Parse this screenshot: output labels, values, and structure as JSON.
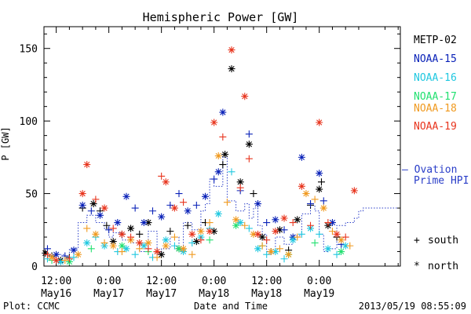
{
  "chart_data": {
    "type": "scatter",
    "title": "Hemispheric Power [GW]",
    "ylabel": "P [GW]",
    "xlabel": "Date and Time",
    "ylim": [
      0,
      165
    ],
    "xlim": [
      -2.8,
      78.5
    ],
    "grid": false,
    "y_ticks": [
      0,
      50,
      100,
      150
    ],
    "x_ticks": [
      {
        "x": 0,
        "time": "12:00",
        "date": "May16"
      },
      {
        "x": 12,
        "time": "0:00",
        "date": "May17"
      },
      {
        "x": 24,
        "time": "12:00",
        "date": "May17"
      },
      {
        "x": 36,
        "time": "0:00",
        "date": "May18"
      },
      {
        "x": 48,
        "time": "12:00",
        "date": "May18"
      },
      {
        "x": 60,
        "time": "0:00",
        "date": "May19"
      }
    ],
    "x_units": "hours after 2013-05-16 12:00 UT",
    "legend_position": "right",
    "series": [
      {
        "name": "METP-02",
        "color": "#000000",
        "values": [
          [
            -2.5,
            9,
            "n"
          ],
          [
            -1,
            7,
            "s"
          ],
          [
            1,
            4,
            "n"
          ],
          [
            3,
            6,
            "s"
          ],
          [
            6,
            40,
            "s"
          ],
          [
            8.5,
            43,
            "n"
          ],
          [
            10,
            38,
            "s"
          ],
          [
            11.5,
            28,
            "s"
          ],
          [
            13,
            17,
            "n"
          ],
          [
            15,
            22,
            "s"
          ],
          [
            17,
            26,
            "n"
          ],
          [
            19,
            22,
            "s"
          ],
          [
            21,
            30,
            "n"
          ],
          [
            23,
            10,
            "s"
          ],
          [
            24,
            8,
            "n"
          ],
          [
            26,
            24,
            "s"
          ],
          [
            28,
            12,
            "n"
          ],
          [
            30,
            28,
            "s"
          ],
          [
            32,
            17,
            "n"
          ],
          [
            34,
            30,
            "s"
          ],
          [
            36,
            24,
            "n"
          ],
          [
            38,
            70,
            "s"
          ],
          [
            38.5,
            77,
            "n"
          ],
          [
            40,
            136,
            "n"
          ],
          [
            42,
            58,
            "n"
          ],
          [
            44,
            84,
            "n"
          ],
          [
            45,
            50,
            "s"
          ],
          [
            47,
            20,
            "n"
          ],
          [
            49,
            10,
            "s"
          ],
          [
            51,
            25,
            "n"
          ],
          [
            53,
            11,
            "s"
          ],
          [
            55,
            32,
            "n"
          ],
          [
            58,
            42,
            "s"
          ],
          [
            60,
            53,
            "n"
          ],
          [
            60.5,
            58,
            "s"
          ],
          [
            62,
            28,
            "n"
          ],
          [
            64,
            20,
            "s"
          ]
        ]
      },
      {
        "name": "NOAA-15",
        "color": "#0a22b8",
        "values": [
          [
            -2,
            12,
            "s"
          ],
          [
            0,
            8,
            "n"
          ],
          [
            2,
            7,
            "s"
          ],
          [
            4,
            11,
            "n"
          ],
          [
            6,
            42,
            "n"
          ],
          [
            8,
            38,
            "s"
          ],
          [
            10,
            35,
            "n"
          ],
          [
            12,
            25,
            "s"
          ],
          [
            14,
            30,
            "n"
          ],
          [
            16,
            48,
            "n"
          ],
          [
            18,
            40,
            "s"
          ],
          [
            20,
            30,
            "n"
          ],
          [
            22,
            38,
            "s"
          ],
          [
            24,
            34,
            "n"
          ],
          [
            26,
            42,
            "s"
          ],
          [
            28,
            50,
            "s"
          ],
          [
            30,
            38,
            "n"
          ],
          [
            32,
            42,
            "s"
          ],
          [
            34,
            48,
            "n"
          ],
          [
            36,
            60,
            "s"
          ],
          [
            37,
            65,
            "n"
          ],
          [
            38,
            106,
            "n"
          ],
          [
            42,
            52,
            "s"
          ],
          [
            44,
            91,
            "s"
          ],
          [
            46,
            43,
            "n"
          ],
          [
            48,
            30,
            "s"
          ],
          [
            50,
            32,
            "n"
          ],
          [
            52,
            25,
            "s"
          ],
          [
            54,
            20,
            "n"
          ],
          [
            56,
            75,
            "n"
          ],
          [
            58,
            43,
            "s"
          ],
          [
            60,
            64,
            "n"
          ],
          [
            61,
            45,
            "s"
          ],
          [
            63,
            30,
            "n"
          ],
          [
            65,
            15,
            "s"
          ]
        ]
      },
      {
        "name": "NOAA-16",
        "color": "#20c8e0",
        "values": [
          [
            -2,
            5,
            "s"
          ],
          [
            1,
            3,
            "n"
          ],
          [
            4,
            6,
            "s"
          ],
          [
            7,
            16,
            "n"
          ],
          [
            9,
            20,
            "s"
          ],
          [
            11,
            14,
            "n"
          ],
          [
            14,
            10,
            "s"
          ],
          [
            16,
            12,
            "n"
          ],
          [
            18,
            8,
            "s"
          ],
          [
            20,
            14,
            "n"
          ],
          [
            22,
            6,
            "s"
          ],
          [
            25,
            18,
            "n"
          ],
          [
            27,
            14,
            "s"
          ],
          [
            29,
            10,
            "n"
          ],
          [
            31,
            16,
            "s"
          ],
          [
            33,
            20,
            "n"
          ],
          [
            35,
            26,
            "s"
          ],
          [
            37,
            36,
            "n"
          ],
          [
            40,
            65,
            "s"
          ],
          [
            42,
            30,
            "n"
          ],
          [
            44,
            26,
            "s"
          ],
          [
            46,
            12,
            "n"
          ],
          [
            48,
            8,
            "s"
          ],
          [
            50,
            10,
            "n"
          ],
          [
            52,
            5,
            "s"
          ],
          [
            54,
            18,
            "n"
          ],
          [
            56,
            22,
            "s"
          ],
          [
            58,
            26,
            "n"
          ],
          [
            60,
            22,
            "s"
          ],
          [
            62,
            12,
            "n"
          ],
          [
            64,
            8,
            "s"
          ],
          [
            66,
            14,
            "n"
          ]
        ]
      },
      {
        "name": "NOAA-17",
        "color": "#22e070",
        "values": [
          [
            -1,
            4,
            "s"
          ],
          [
            3,
            3,
            "n"
          ],
          [
            8,
            12,
            "s"
          ],
          [
            15,
            14,
            "n"
          ],
          [
            21,
            10,
            "s"
          ],
          [
            28,
            12,
            "n"
          ],
          [
            35,
            18,
            "s"
          ],
          [
            41,
            28,
            "n"
          ],
          [
            47,
            14,
            "s"
          ],
          [
            53,
            8,
            "n"
          ],
          [
            59,
            16,
            "s"
          ],
          [
            65,
            10,
            "n"
          ]
        ]
      },
      {
        "name": "NOAA-18",
        "color": "#f09a20",
        "values": [
          [
            -1,
            6,
            "n"
          ],
          [
            2,
            4,
            "s"
          ],
          [
            5,
            8,
            "n"
          ],
          [
            7,
            26,
            "s"
          ],
          [
            9,
            22,
            "n"
          ],
          [
            11,
            16,
            "s"
          ],
          [
            13,
            14,
            "n"
          ],
          [
            15,
            10,
            "s"
          ],
          [
            17,
            18,
            "n"
          ],
          [
            19,
            12,
            "s"
          ],
          [
            21,
            16,
            "n"
          ],
          [
            23,
            6,
            "s"
          ],
          [
            25,
            14,
            "n"
          ],
          [
            27,
            20,
            "s"
          ],
          [
            29,
            12,
            "n"
          ],
          [
            31,
            8,
            "s"
          ],
          [
            33,
            24,
            "n"
          ],
          [
            35,
            30,
            "s"
          ],
          [
            37,
            76,
            "n"
          ],
          [
            39,
            44,
            "s"
          ],
          [
            41,
            32,
            "n"
          ],
          [
            43,
            28,
            "s"
          ],
          [
            45,
            22,
            "n"
          ],
          [
            47,
            14,
            "s"
          ],
          [
            49,
            10,
            "n"
          ],
          [
            51,
            12,
            "s"
          ],
          [
            53,
            8,
            "n"
          ],
          [
            55,
            20,
            "s"
          ],
          [
            57,
            50,
            "n"
          ],
          [
            59,
            46,
            "s"
          ],
          [
            61,
            40,
            "n"
          ],
          [
            63,
            24,
            "s"
          ],
          [
            65,
            18,
            "n"
          ],
          [
            67,
            14,
            "s"
          ]
        ]
      },
      {
        "name": "NOAA-19",
        "color": "#e8351e",
        "values": [
          [
            -2,
            8,
            "s"
          ],
          [
            0,
            4,
            "n"
          ],
          [
            3,
            5,
            "s"
          ],
          [
            6,
            50,
            "n"
          ],
          [
            7,
            70,
            "n"
          ],
          [
            9,
            46,
            "s"
          ],
          [
            11,
            40,
            "n"
          ],
          [
            13,
            26,
            "s"
          ],
          [
            15,
            22,
            "n"
          ],
          [
            17,
            20,
            "s"
          ],
          [
            19,
            16,
            "n"
          ],
          [
            21,
            12,
            "s"
          ],
          [
            23,
            10,
            "n"
          ],
          [
            24,
            62,
            "s"
          ],
          [
            25,
            58,
            "n"
          ],
          [
            27,
            40,
            "n"
          ],
          [
            29,
            44,
            "s"
          ],
          [
            31,
            22,
            "n"
          ],
          [
            33,
            18,
            "s"
          ],
          [
            35,
            24,
            "n"
          ],
          [
            36,
            99,
            "n"
          ],
          [
            38,
            89,
            "s"
          ],
          [
            40,
            149,
            "n"
          ],
          [
            42,
            54,
            "s"
          ],
          [
            43,
            117,
            "n"
          ],
          [
            44,
            74,
            "s"
          ],
          [
            46,
            22,
            "n"
          ],
          [
            48,
            18,
            "s"
          ],
          [
            50,
            24,
            "n"
          ],
          [
            52,
            33,
            "n"
          ],
          [
            54,
            30,
            "s"
          ],
          [
            56,
            55,
            "n"
          ],
          [
            58,
            28,
            "s"
          ],
          [
            60,
            99,
            "n"
          ],
          [
            62,
            30,
            "s"
          ],
          [
            64,
            22,
            "n"
          ],
          [
            66,
            20,
            "s"
          ],
          [
            68,
            52,
            "n"
          ]
        ]
      }
    ],
    "ovation": {
      "name": "— Ovation Prime HPI",
      "label_line1": "— Ovation",
      "label_line2": "Prime HPI",
      "color": "#2a3ec8",
      "values": [
        [
          -2.8,
          8
        ],
        [
          -1,
          6
        ],
        [
          0,
          8
        ],
        [
          2,
          7
        ],
        [
          3,
          12
        ],
        [
          5,
          30
        ],
        [
          7,
          35
        ],
        [
          9,
          30
        ],
        [
          11,
          26
        ],
        [
          12,
          20
        ],
        [
          13,
          23
        ],
        [
          15,
          18
        ],
        [
          17,
          16
        ],
        [
          19,
          10
        ],
        [
          21,
          24
        ],
        [
          23,
          10
        ],
        [
          24,
          12
        ],
        [
          26,
          20
        ],
        [
          28,
          10
        ],
        [
          29,
          30
        ],
        [
          31,
          25
        ],
        [
          33,
          38
        ],
        [
          34,
          43
        ],
        [
          35,
          60
        ],
        [
          36,
          55
        ],
        [
          38,
          75
        ],
        [
          39,
          45
        ],
        [
          41,
          38
        ],
        [
          43,
          43
        ],
        [
          44,
          33
        ],
        [
          45,
          40
        ],
        [
          46,
          28
        ],
        [
          47,
          22
        ],
        [
          48,
          10
        ],
        [
          50,
          20
        ],
        [
          52,
          15
        ],
        [
          54,
          21
        ],
        [
          56,
          36
        ],
        [
          58,
          42
        ],
        [
          59,
          38
        ],
        [
          60,
          22
        ],
        [
          61,
          10
        ],
        [
          62,
          12
        ],
        [
          64,
          28
        ],
        [
          66,
          30
        ],
        [
          68,
          33
        ],
        [
          69,
          38
        ],
        [
          70,
          40
        ]
      ]
    }
  },
  "legend_markers": {
    "south_symbol": "+",
    "south_label": "south",
    "north_symbol": "*",
    "north_label": "north"
  },
  "footer": {
    "plot_credit": "Plot: CCMC",
    "timestamp": "2013/05/19 08:55:09"
  }
}
